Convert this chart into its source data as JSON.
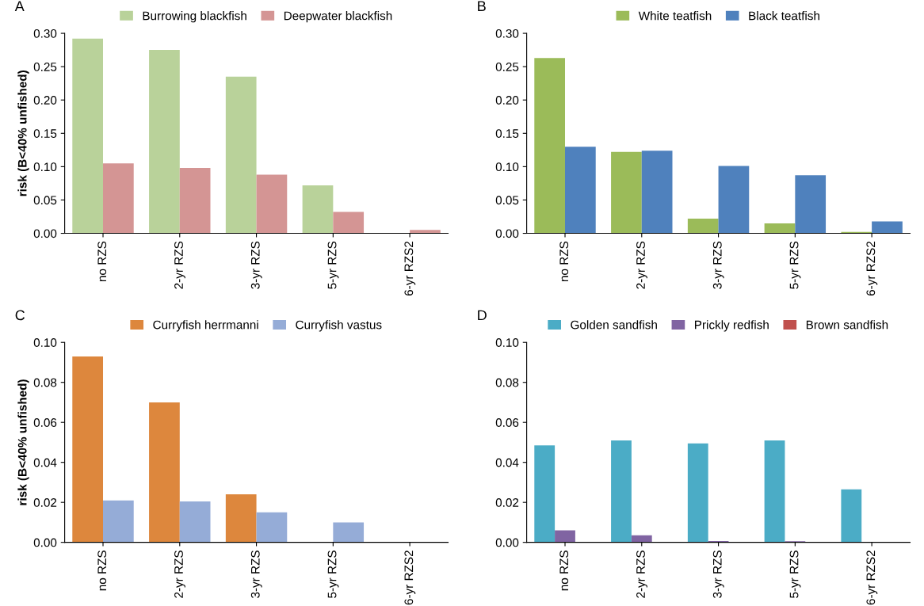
{
  "chart_data": [
    {
      "type": "bar",
      "title": "A",
      "ylabel": "risk (B<40% unfished)",
      "categories": [
        "no RZS",
        "2-yr RZS",
        "3-yr RZS",
        "5-yr RZS",
        "6-yr RZS2"
      ],
      "legend": "top",
      "grid": false,
      "series": [
        {
          "name": "Burrowing blackfish",
          "color": "#b9d29a",
          "values": [
            0.292,
            0.275,
            0.235,
            0.072,
            0
          ]
        },
        {
          "name": "Deepwater blackfish",
          "color": "#d49594",
          "values": [
            0.105,
            0.098,
            0.088,
            0.032,
            0.005
          ]
        }
      ],
      "ylim": [
        0,
        0.3
      ],
      "yticks": [
        {
          "value": 0,
          "label": "0.00"
        },
        {
          "value": 0.05,
          "label": "0.05"
        },
        {
          "value": 0.1,
          "label": "0.10"
        },
        {
          "value": 0.15,
          "label": "0.15"
        },
        {
          "value": 0.2,
          "label": "0.20"
        },
        {
          "value": 0.25,
          "label": "0.25"
        },
        {
          "value": 0.3,
          "label": "0.30"
        }
      ]
    },
    {
      "type": "bar",
      "title": "B",
      "categories": [
        "no RZS",
        "2-yr RZS",
        "3-yr RZS",
        "5-yr RZS",
        "6-yr RZS2"
      ],
      "legend": "top",
      "grid": false,
      "series": [
        {
          "name": "White teatfish",
          "color": "#9bbb59",
          "values": [
            0.263,
            0.122,
            0.022,
            0.015,
            0.002
          ]
        },
        {
          "name": "Black teatfish",
          "color": "#4f81bd",
          "values": [
            0.13,
            0.124,
            0.101,
            0.087,
            0.018
          ]
        }
      ],
      "ylim": [
        0,
        0.3
      ],
      "yticks": [
        {
          "value": 0,
          "label": "0.00"
        },
        {
          "value": 0.05,
          "label": "0.05"
        },
        {
          "value": 0.1,
          "label": "0.10"
        },
        {
          "value": 0.15,
          "label": "0.15"
        },
        {
          "value": 0.2,
          "label": "0.20"
        },
        {
          "value": 0.25,
          "label": "0.25"
        },
        {
          "value": 0.3,
          "label": "0.30"
        }
      ]
    },
    {
      "type": "bar",
      "title": "C",
      "ylabel": "risk (B<40% unfished)",
      "categories": [
        "no RZS",
        "2-yr RZS",
        "3-yr RZS",
        "5-yr RZS",
        "6-yr RZS2"
      ],
      "legend": "top",
      "grid": false,
      "series": [
        {
          "name": "Curryfish herrmanni",
          "color": "#dd873d",
          "values": [
            0.093,
            0.07,
            0.024,
            0,
            0
          ]
        },
        {
          "name": "Curryfish vastus",
          "color": "#95acd7",
          "values": [
            0.021,
            0.0205,
            0.015,
            0.01,
            0
          ]
        }
      ],
      "ylim": [
        0,
        0.1
      ],
      "yticks": [
        {
          "value": 0,
          "label": "0.00"
        },
        {
          "value": 0.02,
          "label": "0.02"
        },
        {
          "value": 0.04,
          "label": "0.04"
        },
        {
          "value": 0.06,
          "label": "0.06"
        },
        {
          "value": 0.08,
          "label": "0.08"
        },
        {
          "value": 0.1,
          "label": "0.10"
        }
      ]
    },
    {
      "type": "bar",
      "title": "D",
      "categories": [
        "no RZS",
        "2-yr RZS",
        "3-yr RZS",
        "5-yr RZS",
        "6-yr RZS2"
      ],
      "legend": "top",
      "grid": false,
      "series": [
        {
          "name": "Golden sandfish",
          "color": "#4bacc6",
          "values": [
            0.0485,
            0.051,
            0.0495,
            0.051,
            0.0265
          ]
        },
        {
          "name": "Prickly redfish",
          "color": "#8064a2",
          "values": [
            0.006,
            0.0035,
            0.0007,
            0.0006,
            0
          ]
        },
        {
          "name": "Brown sandfish",
          "color": "#c0504d",
          "values": [
            0,
            0,
            0,
            0,
            0
          ]
        }
      ],
      "ylim": [
        0,
        0.1
      ],
      "yticks": [
        {
          "value": 0,
          "label": "0.00"
        },
        {
          "value": 0.02,
          "label": "0.02"
        },
        {
          "value": 0.04,
          "label": "0.04"
        },
        {
          "value": 0.06,
          "label": "0.06"
        },
        {
          "value": 0.08,
          "label": "0.08"
        },
        {
          "value": 0.1,
          "label": "0.10"
        }
      ]
    }
  ]
}
